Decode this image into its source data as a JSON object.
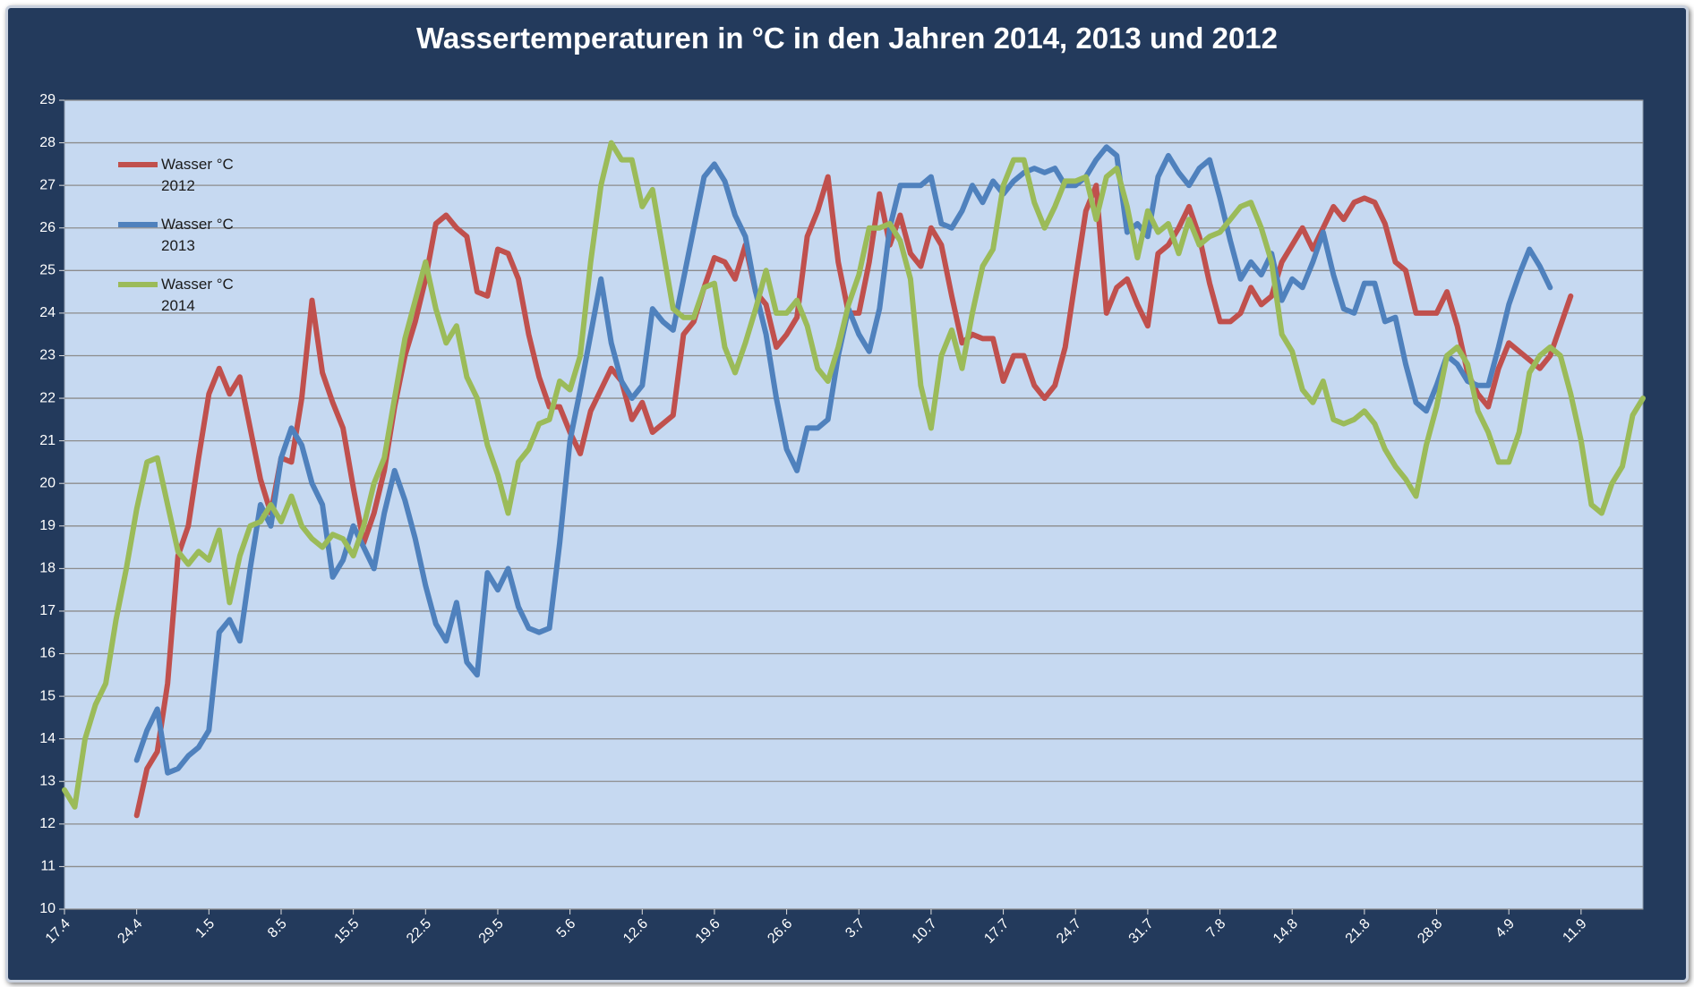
{
  "chart_data": {
    "type": "line",
    "title": "Wassertemperaturen in °C  in den Jahren 2014, 2013 und 2012",
    "categories": [
      "17.4",
      null,
      null,
      null,
      null,
      null,
      null,
      "24.4",
      null,
      null,
      null,
      null,
      null,
      null,
      "1.5",
      null,
      null,
      null,
      null,
      null,
      null,
      "8.5",
      null,
      null,
      null,
      null,
      null,
      null,
      "15.5",
      null,
      null,
      null,
      null,
      null,
      null,
      "22.5",
      null,
      null,
      null,
      null,
      null,
      null,
      "29.5",
      null,
      null,
      null,
      null,
      null,
      null,
      "5.6",
      null,
      null,
      null,
      null,
      null,
      null,
      "12.6",
      null,
      null,
      null,
      null,
      null,
      null,
      "19.6",
      null,
      null,
      null,
      null,
      null,
      null,
      "26.6",
      null,
      null,
      null,
      null,
      null,
      null,
      "3.7",
      null,
      null,
      null,
      null,
      null,
      null,
      "10.7",
      null,
      null,
      null,
      null,
      null,
      null,
      "17.7",
      null,
      null,
      null,
      null,
      null,
      null,
      "24.7",
      null,
      null,
      null,
      null,
      null,
      null,
      "31.7",
      null,
      null,
      null,
      null,
      null,
      null,
      "7.8",
      null,
      null,
      null,
      null,
      null,
      null,
      "14.8",
      null,
      null,
      null,
      null,
      null,
      null,
      "21.8",
      null,
      null,
      null,
      null,
      null,
      null,
      "28.8",
      null,
      null,
      null,
      null,
      null,
      null,
      "4.9",
      null,
      null,
      null,
      null,
      null,
      null,
      "11.9",
      null,
      null,
      null,
      null,
      null,
      null
    ],
    "series": [
      {
        "name": "Wasser °C 2012",
        "color": "#c0504d",
        "values": [
          null,
          null,
          null,
          null,
          null,
          null,
          null,
          12.2,
          13.3,
          13.7,
          15.3,
          18.3,
          19,
          20.6,
          22.1,
          22.7,
          22.1,
          22.5,
          21.3,
          20.1,
          19.3,
          20.6,
          20.5,
          22,
          24.3,
          22.6,
          21.9,
          21.3,
          19.9,
          18.6,
          19.3,
          20.3,
          21.8,
          23,
          23.8,
          24.8,
          26.1,
          26.3,
          26,
          25.8,
          24.5,
          24.4,
          25.5,
          25.4,
          24.8,
          23.5,
          22.5,
          21.8,
          21.8,
          21.2,
          20.7,
          21.7,
          22.2,
          22.7,
          22.4,
          21.5,
          21.9,
          21.2,
          21.4,
          21.6,
          23.5,
          23.8,
          24.6,
          25.3,
          25.2,
          24.8,
          25.6,
          24.5,
          24.2,
          23.2,
          23.5,
          23.9,
          25.8,
          26.4,
          27.2,
          25.2,
          24,
          24,
          25.2,
          26.8,
          25.6,
          26.3,
          25.4,
          25.1,
          26,
          25.6,
          24.4,
          23.3,
          23.5,
          23.4,
          23.4,
          22.4,
          23,
          23,
          22.3,
          22,
          22.3,
          23.2,
          24.8,
          26.4,
          27,
          24,
          24.6,
          24.8,
          24.2,
          23.7,
          25.4,
          25.6,
          26,
          26.5,
          25.8,
          24.7,
          23.8,
          23.8,
          24,
          24.6,
          24.2,
          24.4,
          25.2,
          25.6,
          26,
          25.5,
          26,
          26.5,
          26.2,
          26.6,
          26.7,
          26.6,
          26.1,
          25.2,
          25,
          24,
          24,
          24,
          24.5,
          23.7,
          22.6,
          22.1,
          21.8,
          22.7,
          23.3,
          23.1,
          22.9,
          22.7,
          23,
          23.7,
          24.4,
          null,
          null,
          null,
          null,
          null,
          null,
          null
        ]
      },
      {
        "name": "Wasser °C 2013",
        "color": "#4f81bd",
        "values": [
          null,
          null,
          null,
          null,
          null,
          null,
          null,
          13.5,
          14.2,
          14.7,
          13.2,
          13.3,
          13.6,
          13.8,
          14.2,
          16.5,
          16.8,
          16.3,
          18,
          19.5,
          19,
          20.6,
          21.3,
          20.9,
          20,
          19.5,
          17.8,
          18.2,
          19,
          18.5,
          18,
          19.3,
          20.3,
          19.6,
          18.7,
          17.6,
          16.7,
          16.3,
          17.2,
          15.8,
          15.5,
          17.9,
          17.5,
          18,
          17.1,
          16.6,
          16.5,
          16.6,
          18.6,
          21,
          22.2,
          23.5,
          24.8,
          23.3,
          22.4,
          22,
          22.3,
          24.1,
          23.8,
          23.6,
          24.8,
          26,
          27.2,
          27.5,
          27.1,
          26.3,
          25.8,
          24.5,
          23.5,
          22,
          20.8,
          20.3,
          21.3,
          21.3,
          21.5,
          23,
          24.1,
          23.5,
          23.1,
          24.1,
          26,
          27,
          27,
          27,
          27.2,
          26.1,
          26,
          26.4,
          27,
          26.6,
          27.1,
          26.8,
          27.1,
          27.3,
          27.4,
          27.3,
          27.4,
          27,
          27,
          27.2,
          27.6,
          27.9,
          27.7,
          25.9,
          26.1,
          25.8,
          27.2,
          27.7,
          27.3,
          27,
          27.4,
          27.6,
          26.7,
          25.7,
          24.8,
          25.2,
          24.9,
          25.4,
          24.3,
          24.8,
          24.6,
          25.2,
          25.9,
          24.9,
          24.1,
          24,
          24.7,
          24.7,
          23.8,
          23.9,
          22.8,
          21.9,
          21.7,
          22.3,
          23,
          22.8,
          22.4,
          22.3,
          22.3,
          23.2,
          24.2,
          24.9,
          25.5,
          25.1,
          24.6,
          null,
          null,
          null,
          null,
          null,
          null,
          null,
          null,
          null
        ]
      },
      {
        "name": "Wasser °C 2014",
        "color": "#9bbb59",
        "values": [
          12.8,
          12.4,
          14,
          14.8,
          15.3,
          16.8,
          18,
          19.4,
          20.5,
          20.6,
          19.5,
          18.4,
          18.1,
          18.4,
          18.2,
          18.9,
          17.2,
          18.3,
          19,
          19.1,
          19.5,
          19.1,
          19.7,
          19,
          18.7,
          18.5,
          18.8,
          18.7,
          18.3,
          19,
          20,
          20.6,
          22,
          23.4,
          24.3,
          25.2,
          24.1,
          23.3,
          23.7,
          22.5,
          22,
          20.9,
          20.2,
          19.3,
          20.5,
          20.8,
          21.4,
          21.5,
          22.4,
          22.2,
          23,
          25.2,
          27,
          28,
          27.6,
          27.6,
          26.5,
          26.9,
          25.5,
          24.1,
          23.9,
          23.9,
          24.6,
          24.7,
          23.2,
          22.6,
          23.3,
          24.1,
          25,
          24,
          24,
          24.3,
          23.7,
          22.7,
          22.4,
          23.2,
          24.2,
          24.9,
          26,
          26,
          26.1,
          25.7,
          24.8,
          22.3,
          21.3,
          23,
          23.6,
          22.7,
          24,
          25.1,
          25.5,
          27,
          27.6,
          27.6,
          26.6,
          26,
          26.5,
          27.1,
          27.1,
          27.2,
          26.2,
          27.2,
          27.4,
          26.5,
          25.3,
          26.4,
          25.9,
          26.1,
          25.4,
          26.2,
          25.6,
          25.8,
          25.9,
          26.2,
          26.5,
          26.6,
          26,
          25.2,
          23.5,
          23.1,
          22.2,
          21.9,
          22.4,
          21.5,
          21.4,
          21.5,
          21.7,
          21.4,
          20.8,
          20.4,
          20.1,
          19.7,
          20.9,
          21.8,
          23,
          23.2,
          22.8,
          21.7,
          21.2,
          20.5,
          20.5,
          21.2,
          22.6,
          23,
          23.2,
          23,
          22.1,
          21,
          19.5,
          19.3,
          20,
          20.4,
          21.6,
          22
        ]
      }
    ],
    "ylim": [
      10,
      29
    ],
    "yticks": [
      10,
      11,
      12,
      13,
      14,
      15,
      16,
      17,
      18,
      19,
      20,
      21,
      22,
      23,
      24,
      25,
      26,
      27,
      28,
      29
    ],
    "grid": true,
    "legend": "top-left"
  }
}
